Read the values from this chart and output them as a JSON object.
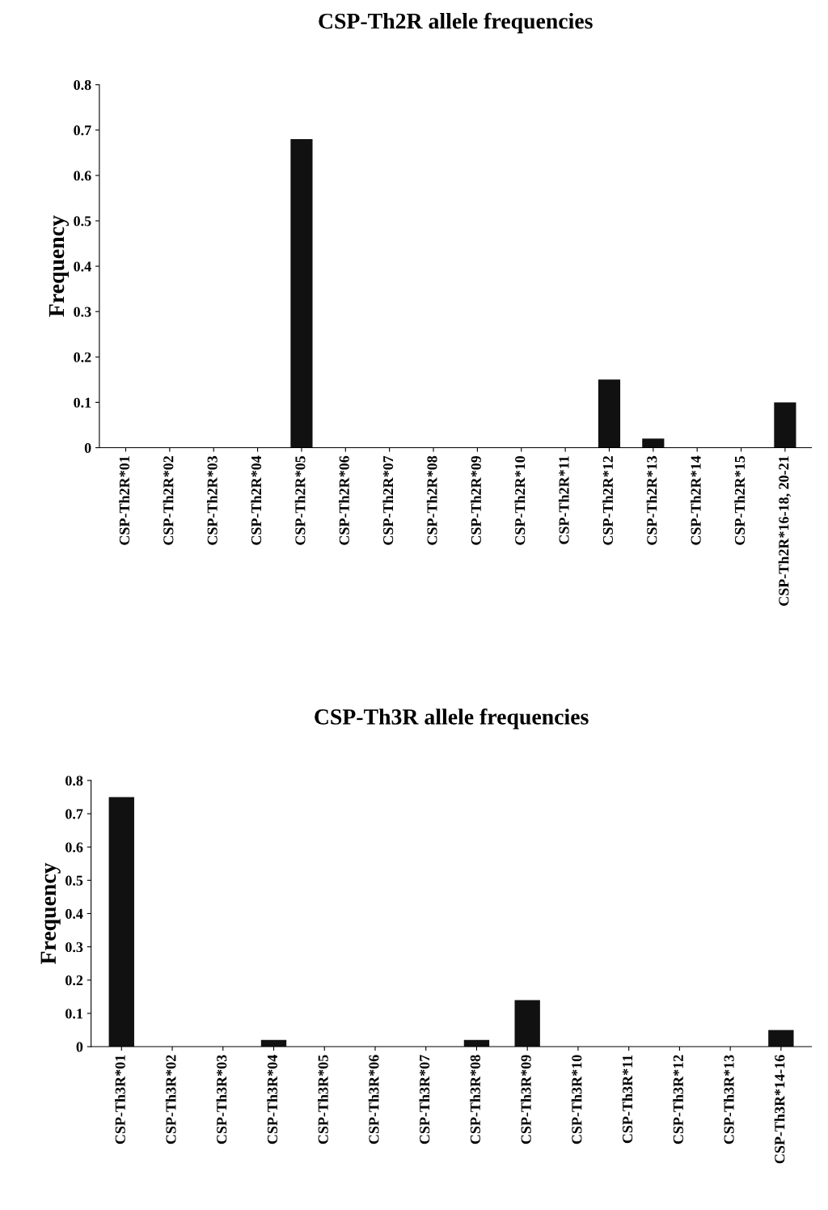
{
  "chart_data": [
    {
      "type": "bar",
      "title": "CSP-Th2R allele frequencies",
      "ylabel": "Frequency",
      "color": "#111111",
      "categories": [
        "CSP-Th2R*01",
        "CSP-Th2R*02",
        "CSP-Th2R*03",
        "CSP-Th2R*04",
        "CSP-Th2R*05",
        "CSP-Th2R*06",
        "CSP-Th2R*07",
        "CSP-Th2R*08",
        "CSP-Th2R*09",
        "CSP-Th2R*10",
        "CSP-Th2R*11",
        "CSP-Th2R*12",
        "CSP-Th2R*13",
        "CSP-Th2R*14",
        "CSP-Th2R*15",
        "CSP-Th2R*16-18, 20-21"
      ],
      "values": [
        0,
        0,
        0,
        0,
        0.68,
        0,
        0,
        0,
        0,
        0,
        0,
        0.15,
        0.02,
        0,
        0,
        0.1
      ],
      "ylim": [
        0,
        0.8
      ],
      "yticks": [
        0,
        0.1,
        0.2,
        0.3,
        0.4,
        0.5,
        0.6,
        0.7,
        0.8
      ],
      "grid": false,
      "legend": false
    },
    {
      "type": "bar",
      "title": "CSP-Th3R allele frequencies",
      "ylabel": "Frequency",
      "color": "#111111",
      "categories": [
        "CSP-Th3R*01",
        "CSP-Th3R*02",
        "CSP-Th3R*03",
        "CSP-Th3R*04",
        "CSP-Th3R*05",
        "CSP-Th3R*06",
        "CSP-Th3R*07",
        "CSP-Th3R*08",
        "CSP-Th3R*09",
        "CSP-Th3R*10",
        "CSP-Th3R*11",
        "CSP-Th3R*12",
        "CSP-Th3R*13",
        "CSP-Th3R*14-16"
      ],
      "values": [
        0.75,
        0,
        0,
        0.02,
        0,
        0,
        0,
        0.02,
        0.14,
        0,
        0,
        0,
        0,
        0.05
      ],
      "ylim": [
        0,
        0.8
      ],
      "yticks": [
        0,
        0.1,
        0.2,
        0.3,
        0.4,
        0.5,
        0.6,
        0.7,
        0.8
      ],
      "grid": false,
      "legend": false
    }
  ]
}
